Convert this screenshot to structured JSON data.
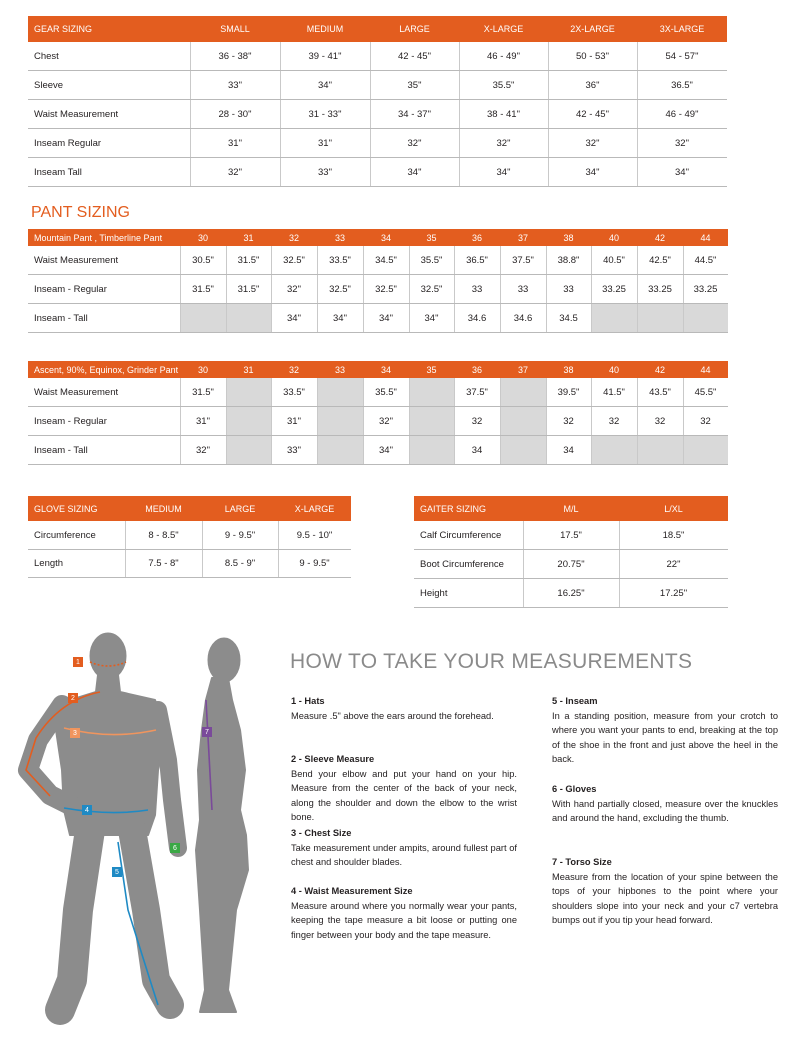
{
  "gear_sizing": {
    "header": [
      "GEAR SIZING",
      "SMALL",
      "MEDIUM",
      "LARGE",
      "X-LARGE",
      "2X-LARGE",
      "3X-LARGE"
    ],
    "rows": [
      [
        "Chest",
        "36 - 38\"",
        "39 - 41\"",
        "42 - 45\"",
        "46 - 49\"",
        "50 - 53\"",
        "54 - 57\""
      ],
      [
        "Sleeve",
        "33\"",
        "34\"",
        "35\"",
        "35.5\"",
        "36\"",
        "36.5\""
      ],
      [
        "Waist Measurement",
        "28 - 30\"",
        "31 - 33\"",
        "34 - 37\"",
        "38 - 41\"",
        "42 - 45\"",
        "46 - 49\""
      ],
      [
        "Inseam Regular",
        "31\"",
        "31\"",
        "32\"",
        "32\"",
        "32\"",
        "32\""
      ],
      [
        "Inseam Tall",
        "32\"",
        "33\"",
        "34\"",
        "34\"",
        "34\"",
        "34\""
      ]
    ]
  },
  "pant_sizing": {
    "title": "PANT SIZING",
    "tables": [
      {
        "header": [
          "Mountain Pant , Timberline Pant",
          "30",
          "31",
          "32",
          "33",
          "34",
          "35",
          "36",
          "37",
          "38",
          "40",
          "42",
          "44"
        ],
        "rows": [
          [
            "Waist Measurement",
            "30.5\"",
            "31.5\"",
            "32.5\"",
            "33.5\"",
            "34.5\"",
            "35.5\"",
            "36.5\"",
            "37.5\"",
            "38.8\"",
            "40.5\"",
            "42.5\"",
            "44.5\""
          ],
          [
            "Inseam - Regular",
            "31.5\"",
            "31.5\"",
            "32\"",
            "32.5\"",
            "32.5\"",
            "32.5\"",
            "33",
            "33",
            "33",
            "33.25",
            "33.25",
            "33.25"
          ],
          [
            "Inseam - Tall",
            null,
            null,
            "34\"",
            "34\"",
            "34\"",
            "34\"",
            "34.6",
            "34.6",
            "34.5",
            null,
            null,
            null
          ]
        ]
      },
      {
        "header": [
          "Ascent, 90%, Equinox, Grinder Pant",
          "30",
          "31",
          "32",
          "33",
          "34",
          "35",
          "36",
          "37",
          "38",
          "40",
          "42",
          "44"
        ],
        "rows": [
          [
            "Waist Measurement",
            "31.5\"",
            null,
            "33.5\"",
            null,
            "35.5\"",
            null,
            "37.5\"",
            null,
            "39.5\"",
            "41.5\"",
            "43.5\"",
            "45.5\""
          ],
          [
            "Inseam - Regular",
            "31\"",
            null,
            "31\"",
            null,
            "32\"",
            null,
            "32",
            null,
            "32",
            "32",
            "32",
            "32"
          ],
          [
            "Inseam - Tall",
            "32\"",
            null,
            "33\"",
            null,
            "34\"",
            null,
            "34",
            null,
            "34",
            null,
            null,
            null
          ]
        ]
      }
    ]
  },
  "glove_sizing": {
    "header": [
      "GLOVE SIZING",
      "MEDIUM",
      "LARGE",
      "X-LARGE"
    ],
    "rows": [
      [
        "Circumference",
        "8 - 8.5\"",
        "9 - 9.5\"",
        "9.5 - 10\""
      ],
      [
        "Length",
        "7.5 - 8\"",
        "8.5 - 9\"",
        "9 - 9.5\""
      ]
    ]
  },
  "gaiter_sizing": {
    "header": [
      "GAITER SIZING",
      "M/L",
      "L/XL"
    ],
    "rows": [
      [
        "Calf Circumference",
        "17.5\"",
        "18.5\""
      ],
      [
        "Boot Circumference",
        "20.75\"",
        "22\""
      ],
      [
        "Height",
        "16.25\"",
        "17.25\""
      ]
    ]
  },
  "measurements": {
    "title": "HOW TO TAKE YOUR MEASUREMENTS",
    "figure_labels": [
      "1",
      "2",
      "3",
      "4",
      "5",
      "6",
      "7"
    ],
    "items": [
      {
        "title": "1 - Hats",
        "text": "Measure .5\" above the ears around the forehead."
      },
      {
        "title": "2 - Sleeve Measure",
        "text": "Bend your elbow and put your hand on your hip. Measure from the center of the back of your neck, along the shoulder and down the elbow to the wrist bone."
      },
      {
        "title": "3 - Chest Size",
        "text": "Take measurement under ampits, around fullest part of chest and shoulder blades."
      },
      {
        "title": "4 - Waist Measurement Size",
        "text": "Measure around where you normally wear your pants, keeping the tape measure a bit loose or putting one finger between your body and the tape measure."
      },
      {
        "title": "5 - Inseam",
        "text": "In a standing position, measure from your crotch to where you want your pants to end, breaking at the top of the shoe in the front and just above the heel in the back."
      },
      {
        "title": "6 - Gloves",
        "text": "With hand partially closed, measure over the knuckles and around the hand, excluding the thumb."
      },
      {
        "title": "7 - Torso Size",
        "text": "Measure from the location of your spine between the tops of your hipbones to the point where your shoulders slope into your neck and your c7 vertebra bumps out if you tip your head forward."
      }
    ]
  }
}
